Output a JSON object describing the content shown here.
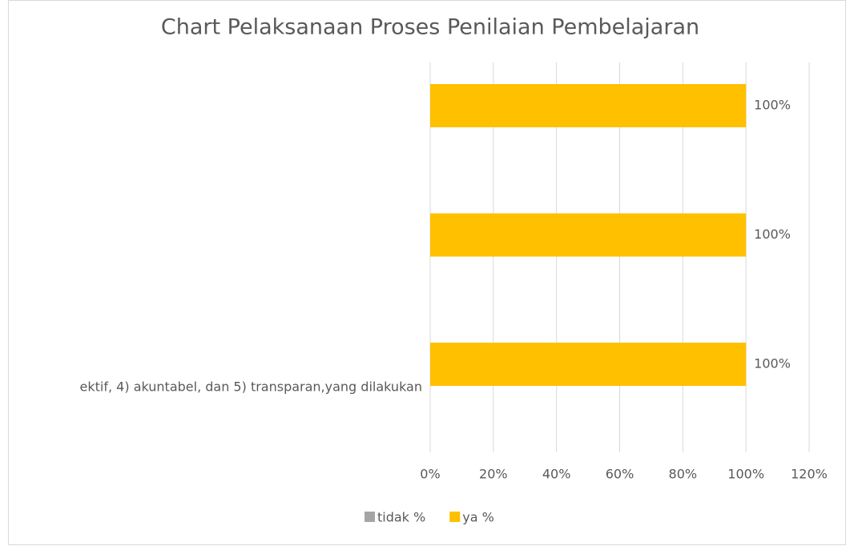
{
  "chart_data": {
    "type": "barh",
    "title": "Chart Pelaksanaan Proses Penilaian Pembelajaran",
    "categories": [
      "ektif, 4) akuntabel, dan 5) transparan,yang dilakukan",
      null,
      null
    ],
    "series": [
      {
        "name": "tidak %",
        "color": "#a5a5a5",
        "values": [
          0,
          0,
          0
        ]
      },
      {
        "name": "ya %",
        "color": "#ffc000",
        "values": [
          100,
          100,
          100
        ],
        "value_labels": [
          "100%",
          "100%",
          "100%"
        ]
      }
    ],
    "xlim": [
      0,
      120
    ],
    "xticks": [
      {
        "value": 0,
        "label": "0%"
      },
      {
        "value": 20,
        "label": "20%"
      },
      {
        "value": 40,
        "label": "40%"
      },
      {
        "value": 60,
        "label": "60%"
      },
      {
        "value": 80,
        "label": "80%"
      },
      {
        "value": 100,
        "label": "100%"
      },
      {
        "value": 120,
        "label": "120%"
      }
    ],
    "grid": true,
    "legend": "bottom"
  }
}
